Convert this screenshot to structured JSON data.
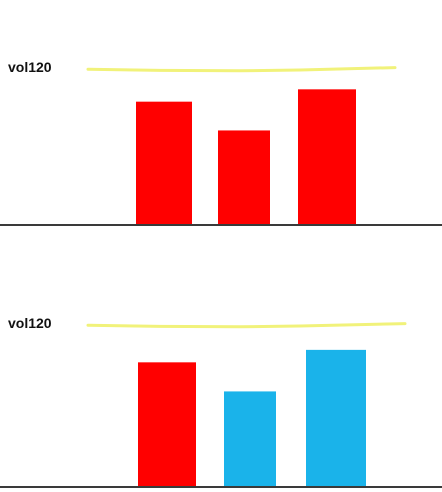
{
  "chart_data": [
    {
      "type": "bar",
      "label": "vol120",
      "values": [
        3.0,
        2.3,
        3.3
      ],
      "colors": [
        "#ff0000",
        "#ff0000",
        "#ff0000"
      ],
      "line": {
        "name": "vol120",
        "values": [
          4.1,
          3.95,
          3.9,
          4.0,
          4.3
        ],
        "color": "#f1f27a"
      },
      "ylim": [
        0,
        4.5
      ],
      "grid": false
    },
    {
      "type": "bar",
      "label": "vol120",
      "values": [
        3.0,
        2.3,
        3.3
      ],
      "colors": [
        "#ff0000",
        "#1ab3ea",
        "#1ab3ea"
      ],
      "line": {
        "name": "vol120",
        "values": [
          4.1,
          3.95,
          3.9,
          4.0,
          4.3
        ],
        "color": "#f1f27a"
      },
      "ylim": [
        0,
        4.5
      ],
      "grid": false
    }
  ],
  "colors": {
    "axis": "#3a3a3a",
    "background": "#ffffff"
  }
}
